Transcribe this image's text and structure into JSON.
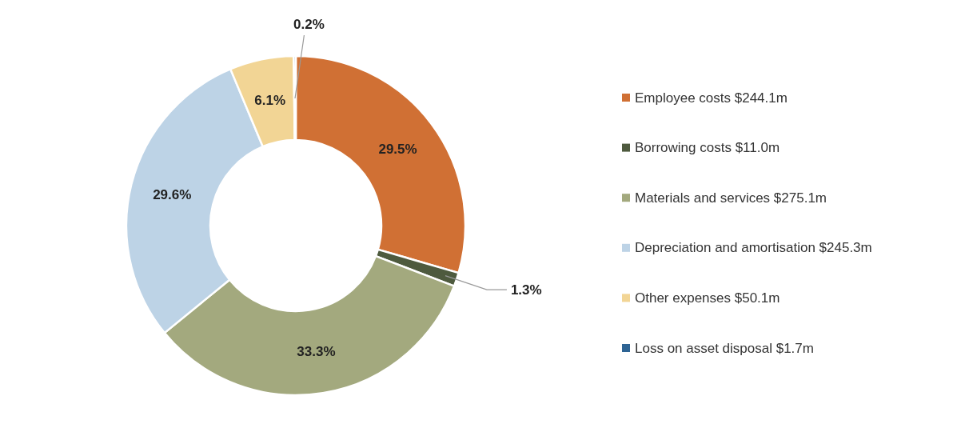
{
  "chart_data": {
    "type": "donut",
    "categories": [
      "Employee costs $244.1m",
      "Borrowing costs $11.0m",
      "Materials and services $275.1m",
      "Depreciation and amortisation $245.3m",
      "Other expenses $50.1m",
      "Loss on asset disposal $1.7m"
    ],
    "values": [
      29.5,
      1.3,
      33.3,
      29.6,
      6.1,
      0.2
    ],
    "colors": [
      "#d07034",
      "#4e5a3e",
      "#a3a97e",
      "#bdd3e6",
      "#f2d595",
      "#2e6494"
    ],
    "value_labels": [
      "29.5%",
      "1.3%",
      "33.3%",
      "29.6%",
      "6.1%",
      "0.2%"
    ],
    "legend": "right"
  }
}
